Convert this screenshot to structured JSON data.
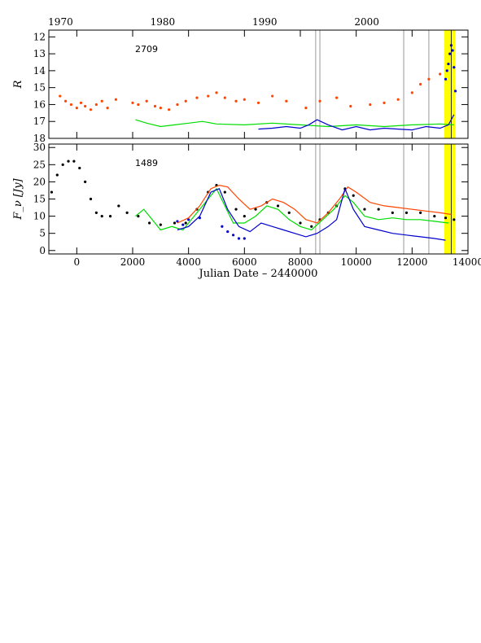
{
  "chart_data": [
    {
      "type": "scatter",
      "panel": "top",
      "ylabel": "R",
      "ylim": [
        18,
        11.6
      ],
      "y_inverted": true,
      "xlim": [
        -1000,
        14000
      ],
      "yticks": [
        12,
        13,
        14,
        15,
        16,
        17,
        18
      ],
      "annotation": "2709",
      "top_axis": {
        "label_values": [
          1970,
          1980,
          1990,
          2000
        ],
        "jd_offsets": [
          -579,
          3073,
          6726,
          10378
        ]
      },
      "vertical_lines": [
        8550,
        8700,
        11700,
        12600
      ],
      "highlight": {
        "x_range": [
          13150,
          13550
        ],
        "color": "#ffff00",
        "inner_lines": [
          13400
        ]
      },
      "series": [
        {
          "marker": "dots",
          "color": "#ff4500",
          "points": [
            [
              -600,
              15.5
            ],
            [
              -400,
              15.8
            ],
            [
              -200,
              16.0
            ],
            [
              0,
              16.2
            ],
            [
              150,
              15.9
            ],
            [
              300,
              16.1
            ],
            [
              500,
              16.3
            ],
            [
              700,
              16.0
            ],
            [
              900,
              15.8
            ],
            [
              1100,
              16.2
            ],
            [
              1400,
              15.7
            ],
            [
              2000,
              15.9
            ],
            [
              2200,
              16.0
            ],
            [
              2500,
              15.8
            ],
            [
              2800,
              16.1
            ],
            [
              3000,
              16.2
            ],
            [
              3300,
              16.3
            ],
            [
              3600,
              16.0
            ],
            [
              3900,
              15.8
            ],
            [
              4300,
              15.6
            ],
            [
              4700,
              15.5
            ],
            [
              5000,
              15.3
            ],
            [
              5300,
              15.6
            ],
            [
              5700,
              15.8
            ],
            [
              6000,
              15.7
            ],
            [
              6500,
              15.9
            ],
            [
              7000,
              15.5
            ],
            [
              7500,
              15.8
            ],
            [
              8200,
              16.2
            ],
            [
              8700,
              15.8
            ],
            [
              9300,
              15.6
            ],
            [
              9800,
              16.1
            ],
            [
              10500,
              16.0
            ],
            [
              11000,
              15.9
            ],
            [
              11500,
              15.7
            ],
            [
              12000,
              15.3
            ],
            [
              12300,
              14.8
            ],
            [
              12600,
              14.5
            ],
            [
              13000,
              14.2
            ]
          ]
        },
        {
          "marker": "dots",
          "color": "#0000cc",
          "points": [
            [
              13200,
              14.5
            ],
            [
              13250,
              14.0
            ],
            [
              13300,
              13.6
            ],
            [
              13350,
              13.0
            ],
            [
              13400,
              12.5
            ],
            [
              13450,
              12.8
            ],
            [
              13500,
              13.8
            ],
            [
              13550,
              15.2
            ]
          ]
        },
        {
          "marker": "line",
          "color": "#00dd00",
          "points": [
            [
              2100,
              16.9
            ],
            [
              2500,
              17.1
            ],
            [
              3000,
              17.3
            ],
            [
              3500,
              17.2
            ],
            [
              4000,
              17.1
            ],
            [
              4500,
              17.0
            ],
            [
              5000,
              17.15
            ],
            [
              6000,
              17.2
            ],
            [
              7000,
              17.1
            ],
            [
              8000,
              17.2
            ],
            [
              9000,
              17.3
            ],
            [
              10000,
              17.2
            ],
            [
              11000,
              17.3
            ],
            [
              12000,
              17.2
            ],
            [
              13000,
              17.15
            ],
            [
              13500,
              17.2
            ]
          ]
        },
        {
          "marker": "line",
          "color": "#0000cc",
          "points": [
            [
              6500,
              17.45
            ],
            [
              7000,
              17.4
            ],
            [
              7500,
              17.3
            ],
            [
              8000,
              17.4
            ],
            [
              8300,
              17.2
            ],
            [
              8600,
              16.9
            ],
            [
              9000,
              17.2
            ],
            [
              9500,
              17.5
            ],
            [
              10000,
              17.3
            ],
            [
              10500,
              17.5
            ],
            [
              11000,
              17.4
            ],
            [
              11500,
              17.45
            ],
            [
              12000,
              17.5
            ],
            [
              12500,
              17.3
            ],
            [
              13000,
              17.4
            ],
            [
              13300,
              17.2
            ],
            [
              13500,
              16.6
            ]
          ]
        }
      ]
    },
    {
      "type": "scatter",
      "panel": "bottom",
      "ylabel": "F_ν [Jy]",
      "ylim": [
        -1,
        31
      ],
      "xlim": [
        -1000,
        14000
      ],
      "yticks": [
        0,
        5,
        10,
        15,
        20,
        25,
        30
      ],
      "annotation": "1489",
      "xlabel": "Julian Date – 2440000",
      "xticks": [
        0,
        2000,
        4000,
        6000,
        8000,
        10000,
        12000,
        14000
      ],
      "vertical_lines": [
        8550,
        8700,
        11700,
        12600
      ],
      "highlight": {
        "x_range": [
          13150,
          13550
        ],
        "color": "#ffff00",
        "inner_lines": [
          13400
        ]
      },
      "series": [
        {
          "marker": "dots",
          "color": "#000000",
          "points": [
            [
              -900,
              17
            ],
            [
              -700,
              22
            ],
            [
              -500,
              25
            ],
            [
              -300,
              26
            ],
            [
              -100,
              26
            ],
            [
              100,
              24
            ],
            [
              300,
              20
            ],
            [
              500,
              15
            ],
            [
              700,
              11
            ],
            [
              900,
              10
            ],
            [
              1200,
              10
            ],
            [
              1500,
              13
            ],
            [
              1800,
              11
            ],
            [
              2200,
              10
            ],
            [
              2600,
              8
            ],
            [
              3000,
              7.5
            ],
            [
              3500,
              8
            ],
            [
              3900,
              8
            ],
            [
              4300,
              12
            ],
            [
              4700,
              17
            ],
            [
              5000,
              19
            ],
            [
              5300,
              17
            ],
            [
              5700,
              12
            ],
            [
              6000,
              10
            ],
            [
              6400,
              12
            ],
            [
              6800,
              14
            ],
            [
              7200,
              13
            ],
            [
              7600,
              11
            ],
            [
              8000,
              8
            ],
            [
              8400,
              7
            ],
            [
              8700,
              9
            ],
            [
              9000,
              11
            ],
            [
              9300,
              13
            ],
            [
              9600,
              18
            ],
            [
              9900,
              16
            ],
            [
              10300,
              12
            ],
            [
              10800,
              12
            ],
            [
              11300,
              11
            ],
            [
              11800,
              11
            ],
            [
              12300,
              11
            ],
            [
              12800,
              10
            ],
            [
              13200,
              9.5
            ],
            [
              13500,
              9
            ]
          ]
        },
        {
          "marker": "dots",
          "color": "#0000cc",
          "points": [
            [
              3600,
              8.5
            ],
            [
              3800,
              7.5
            ],
            [
              4000,
              9
            ],
            [
              4400,
              9.5
            ],
            [
              5200,
              7
            ],
            [
              5400,
              5.5
            ],
            [
              5600,
              4.5
            ],
            [
              5800,
              3.5
            ],
            [
              6000,
              3.5
            ]
          ]
        },
        {
          "marker": "line",
          "color": "#ff4500",
          "points": [
            [
              3600,
              8
            ],
            [
              4000,
              9.5
            ],
            [
              4400,
              13
            ],
            [
              4800,
              18
            ],
            [
              5100,
              19
            ],
            [
              5400,
              18.5
            ],
            [
              5800,
              15
            ],
            [
              6200,
              12
            ],
            [
              6600,
              13
            ],
            [
              7000,
              15
            ],
            [
              7400,
              14
            ],
            [
              7800,
              12
            ],
            [
              8200,
              9
            ],
            [
              8600,
              8
            ],
            [
              9000,
              11
            ],
            [
              9400,
              15
            ],
            [
              9700,
              18.5
            ],
            [
              10000,
              17
            ],
            [
              10500,
              14
            ],
            [
              11000,
              13
            ],
            [
              11500,
              12.5
            ],
            [
              12000,
              12
            ],
            [
              12500,
              11.5
            ],
            [
              13000,
              11
            ],
            [
              13400,
              10.5
            ]
          ]
        },
        {
          "marker": "line",
          "color": "#00dd00",
          "points": [
            [
              2100,
              10
            ],
            [
              2400,
              12
            ],
            [
              2700,
              9
            ],
            [
              3000,
              6
            ],
            [
              3400,
              7
            ],
            [
              3800,
              6
            ],
            [
              4200,
              10
            ],
            [
              4600,
              14
            ],
            [
              5000,
              18
            ],
            [
              5300,
              13
            ],
            [
              5600,
              8
            ],
            [
              6000,
              8
            ],
            [
              6400,
              10
            ],
            [
              6800,
              13
            ],
            [
              7200,
              12
            ],
            [
              7600,
              9
            ],
            [
              8000,
              7
            ],
            [
              8400,
              6
            ],
            [
              8800,
              9
            ],
            [
              9200,
              12
            ],
            [
              9600,
              16
            ],
            [
              9900,
              14
            ],
            [
              10300,
              10
            ],
            [
              10800,
              9
            ],
            [
              11300,
              9.5
            ],
            [
              11800,
              9
            ],
            [
              12300,
              9
            ],
            [
              12800,
              8.5
            ],
            [
              13300,
              8
            ]
          ]
        },
        {
          "marker": "line",
          "color": "#0000cc",
          "points": [
            [
              3600,
              6
            ],
            [
              4000,
              7
            ],
            [
              4400,
              10
            ],
            [
              4800,
              17
            ],
            [
              5100,
              18
            ],
            [
              5400,
              12
            ],
            [
              5800,
              7
            ],
            [
              6200,
              5.5
            ],
            [
              6600,
              8
            ],
            [
              7000,
              7
            ],
            [
              7400,
              6
            ],
            [
              7800,
              5
            ],
            [
              8200,
              4
            ],
            [
              8600,
              5
            ],
            [
              9000,
              7
            ],
            [
              9300,
              9
            ],
            [
              9600,
              18
            ],
            [
              9900,
              12
            ],
            [
              10300,
              7
            ],
            [
              10800,
              6
            ],
            [
              11300,
              5
            ],
            [
              11800,
              4.5
            ],
            [
              12300,
              4
            ],
            [
              12800,
              3.5
            ],
            [
              13200,
              3
            ]
          ]
        }
      ]
    }
  ]
}
